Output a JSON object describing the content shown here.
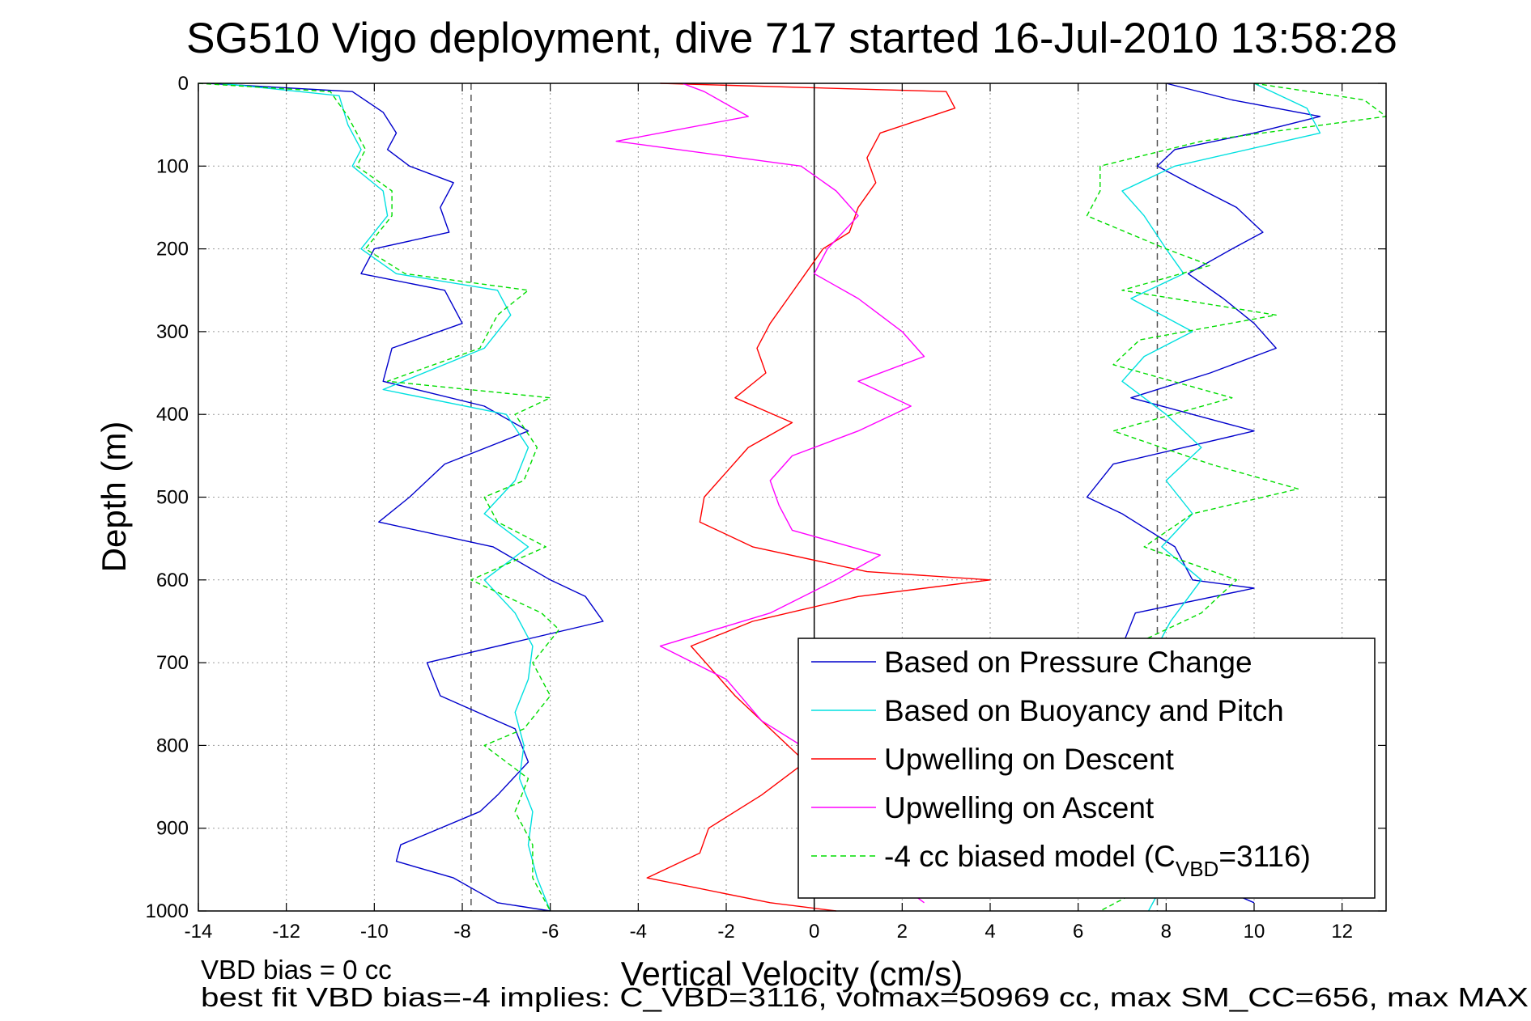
{
  "chart_data": {
    "type": "line",
    "title": "SG510 Vigo deployment, dive 717 started 16-Jul-2010 13:58:28",
    "xlabel": "Vertical Velocity (cm/s)",
    "ylabel": "Depth (m)",
    "xlim": [
      -14,
      13
    ],
    "ylim": [
      0,
      1000
    ],
    "y_reversed": true,
    "grid": true,
    "legend_position": "lower-right",
    "xticks": [
      -14,
      -12,
      -10,
      -8,
      -6,
      -4,
      -2,
      0,
      2,
      4,
      6,
      8,
      10,
      12
    ],
    "yticks": [
      0,
      100,
      200,
      300,
      400,
      500,
      600,
      700,
      800,
      900,
      1000
    ],
    "reference_lines": [
      {
        "x": -7.8,
        "style": "dashed",
        "color": "#555555"
      },
      {
        "x": 0,
        "style": "solid",
        "color": "#000000"
      },
      {
        "x": 7.8,
        "style": "dashed",
        "color": "#555555"
      }
    ],
    "series": [
      {
        "name": "Based on Pressure Change",
        "color": "#0000cc",
        "style": "solid",
        "profiles": [
          {
            "depth": [
              0,
              10,
              35,
              60,
              80,
              100,
              120,
              150,
              180,
              200,
              230,
              250,
              290,
              320,
              360,
              390,
              420,
              460,
              500,
              530,
              560,
              600,
              620,
              650,
              700,
              740,
              780,
              820,
              860,
              880,
              920,
              940,
              960,
              990,
              1000
            ],
            "x": [
              -13.8,
              -10.5,
              -9.8,
              -9.5,
              -9.7,
              -9.2,
              -8.2,
              -8.5,
              -8.3,
              -10.0,
              -10.3,
              -8.4,
              -8.0,
              -9.6,
              -9.8,
              -7.5,
              -6.5,
              -8.4,
              -9.2,
              -9.9,
              -7.3,
              -6.0,
              -5.2,
              -4.8,
              -8.8,
              -8.5,
              -6.8,
              -6.5,
              -7.2,
              -7.6,
              -9.4,
              -9.5,
              -8.2,
              -7.2,
              -6.0
            ]
          },
          {
            "depth": [
              0,
              20,
              40,
              60,
              80,
              100,
              120,
              150,
              180,
              200,
              230,
              260,
              290,
              320,
              350,
              380,
              420,
              460,
              500,
              520,
              560,
              600,
              610,
              640,
              680,
              720,
              760,
              800,
              840,
              880,
              920,
              960,
              990
            ],
            "x": [
              8.0,
              9.5,
              11.5,
              10.0,
              8.2,
              7.8,
              8.5,
              9.6,
              10.2,
              9.5,
              8.5,
              9.3,
              10.0,
              10.5,
              9.0,
              7.2,
              10.0,
              6.8,
              6.2,
              7.0,
              8.2,
              8.6,
              10.0,
              7.3,
              7.0,
              7.5,
              7.8,
              8.3,
              8.1,
              7.5,
              8.0,
              8.7,
              10.0
            ]
          }
        ]
      },
      {
        "name": "Based on Buoyancy and Pitch",
        "color": "#00e0e0",
        "style": "solid",
        "profiles": [
          {
            "depth": [
              0,
              15,
              50,
              80,
              100,
              130,
              160,
              200,
              230,
              250,
              280,
              320,
              370,
              400,
              440,
              480,
              520,
              560,
              600,
              640,
              680,
              720,
              760,
              800,
              840,
              880,
              920,
              960,
              1000
            ],
            "x": [
              -13.5,
              -10.8,
              -10.6,
              -10.3,
              -10.5,
              -9.8,
              -9.7,
              -10.3,
              -9.5,
              -7.2,
              -6.9,
              -7.5,
              -9.8,
              -7.0,
              -6.5,
              -6.8,
              -7.5,
              -6.5,
              -7.5,
              -6.8,
              -6.4,
              -6.5,
              -6.8,
              -6.6,
              -6.7,
              -6.4,
              -6.5,
              -6.3,
              -6.0
            ]
          },
          {
            "depth": [
              0,
              30,
              60,
              100,
              130,
              160,
              200,
              230,
              260,
              300,
              330,
              360,
              400,
              440,
              480,
              520,
              560,
              600,
              650,
              700,
              750,
              800,
              850,
              900,
              950,
              1000
            ],
            "x": [
              10.0,
              11.2,
              11.5,
              8.2,
              7.0,
              7.5,
              8.0,
              8.4,
              7.2,
              8.6,
              7.5,
              7.0,
              8.0,
              8.8,
              8.0,
              8.6,
              7.9,
              8.8,
              8.1,
              7.6,
              7.9,
              8.0,
              8.2,
              8.0,
              8.1,
              7.6
            ]
          }
        ]
      },
      {
        "name": "Upwelling on Descent",
        "color": "#ff0000",
        "style": "solid",
        "profiles": [
          {
            "depth": [
              0,
              10,
              30,
              60,
              90,
              120,
              150,
              180,
              200,
              230,
              260,
              290,
              320,
              350,
              380,
              410,
              440,
              470,
              500,
              530,
              560,
              590,
              600,
              620,
              650,
              680,
              710,
              740,
              780,
              820,
              860,
              900,
              930,
              960,
              990,
              1000
            ],
            "x": [
              -3.5,
              3.0,
              3.2,
              1.5,
              1.2,
              1.4,
              1.0,
              0.8,
              0.2,
              -0.2,
              -0.6,
              -1.0,
              -1.3,
              -1.1,
              -1.8,
              -0.5,
              -1.5,
              -2.0,
              -2.5,
              -2.6,
              -1.4,
              1.2,
              4.0,
              1.0,
              -1.4,
              -2.8,
              -2.3,
              -1.8,
              -1.0,
              -0.2,
              -1.2,
              -2.4,
              -2.6,
              -3.8,
              -1.0,
              0.5
            ]
          }
        ]
      },
      {
        "name": "Upwelling on Ascent",
        "color": "#ff00ff",
        "style": "solid",
        "profiles": [
          {
            "depth": [
              0,
              10,
              40,
              70,
              100,
              130,
              160,
              200,
              230,
              260,
              300,
              330,
              360,
              390,
              420,
              450,
              480,
              510,
              540,
              570,
              600,
              640,
              680,
              720,
              770,
              800,
              850,
              900,
              950,
              990
            ],
            "x": [
              -3.0,
              -2.5,
              -1.5,
              -4.5,
              -0.3,
              0.5,
              1.0,
              0.3,
              0.0,
              1.0,
              2.0,
              2.5,
              1.0,
              2.2,
              1.0,
              -0.5,
              -1.0,
              -0.8,
              -0.5,
              1.5,
              0.5,
              -1.0,
              -3.5,
              -2.0,
              -1.2,
              -0.3,
              0.0,
              0.0,
              1.5,
              2.5
            ]
          }
        ]
      },
      {
        "name": "-4 cc biased model (C_VBD=3116)",
        "color": "#00dd00",
        "style": "dashed",
        "profiles": [
          {
            "depth": [
              0,
              10,
              40,
              80,
              100,
              130,
              160,
              200,
              230,
              250,
              280,
              320,
              360,
              380,
              400,
              440,
              480,
              500,
              530,
              560,
              600,
              640,
              660,
              700,
              740,
              780,
              800,
              840,
              880,
              920,
              960,
              1000
            ],
            "x": [
              -14.0,
              -11.0,
              -10.6,
              -10.2,
              -10.4,
              -9.6,
              -9.6,
              -10.2,
              -9.3,
              -6.5,
              -7.2,
              -7.6,
              -9.7,
              -6.0,
              -6.8,
              -6.3,
              -6.6,
              -7.5,
              -7.2,
              -6.1,
              -7.8,
              -6.2,
              -5.8,
              -6.4,
              -6.0,
              -6.6,
              -7.5,
              -6.5,
              -6.8,
              -6.4,
              -6.4,
              -6.0
            ]
          },
          {
            "depth": [
              0,
              20,
              40,
              70,
              100,
              130,
              160,
              200,
              220,
              250,
              280,
              310,
              340,
              380,
              420,
              460,
              490,
              520,
              560,
              600,
              640,
              680,
              720,
              760,
              800,
              850,
              900,
              950,
              1000
            ],
            "x": [
              10.0,
              12.5,
              13.0,
              8.8,
              6.5,
              6.5,
              6.2,
              8.0,
              9.0,
              7.0,
              10.5,
              7.4,
              6.8,
              9.5,
              6.8,
              9.0,
              11.0,
              8.6,
              7.5,
              9.6,
              8.8,
              7.2,
              8.2,
              8.4,
              7.6,
              8.2,
              7.9,
              8.3,
              6.5
            ]
          }
        ]
      }
    ],
    "legend": [
      {
        "label": "Based on Pressure Change",
        "color": "#0000cc",
        "style": "solid"
      },
      {
        "label": "Based on Buoyancy and Pitch",
        "color": "#00e0e0",
        "style": "solid"
      },
      {
        "label": "Upwelling on Descent",
        "color": "#ff0000",
        "style": "solid"
      },
      {
        "label": "Upwelling on Ascent",
        "color": "#ff00ff",
        "style": "solid"
      },
      {
        "label": "-4 cc biased model (C",
        "sub": "VBD",
        "tail": "=3116)",
        "color": "#00dd00",
        "style": "dashed"
      }
    ],
    "annotations": [
      "VBD bias = 0 cc",
      "best fit VBD bias=-4 implies: C_VBD=3116, volmax=50969 cc, max SM_CC=656, max MAX"
    ]
  }
}
